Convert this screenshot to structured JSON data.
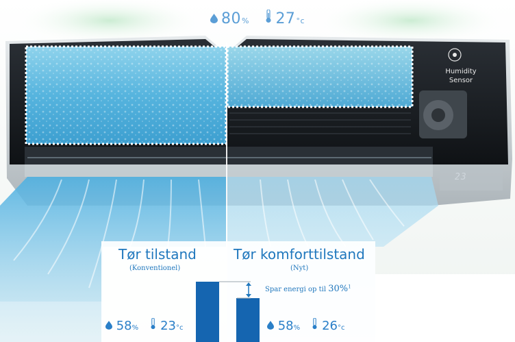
{
  "top": {
    "humidity": "80",
    "humidity_unit": "%",
    "temperature": "27",
    "temperature_unit": "°c"
  },
  "sensor": {
    "line1": "Humidity",
    "line2": "Sensor",
    "icon": "humidity-sensor-icon"
  },
  "display": {
    "digits": "23"
  },
  "left_mode": {
    "title": "Tør tilstand",
    "subtitle": "(Konventionel)",
    "humidity": "58",
    "humidity_unit": "%",
    "temperature": "23",
    "temperature_unit": "°c"
  },
  "right_mode": {
    "title": "Tør komforttilstand",
    "subtitle": "(Nyt)",
    "humidity": "58",
    "humidity_unit": "%",
    "temperature": "26",
    "temperature_unit": "°c"
  },
  "saving": {
    "text": "Spar energi op til ",
    "percent": "30%",
    "footnote": "1"
  },
  "colors": {
    "accent": "#1f77bd",
    "bar": "#1565b0",
    "unit_body": "#161a1e",
    "airflow": "#7cc6ec"
  }
}
